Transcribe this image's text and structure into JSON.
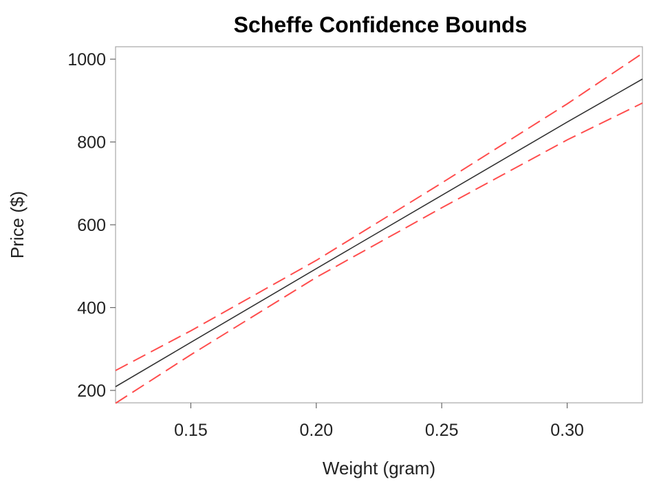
{
  "chart_data": {
    "type": "line",
    "title": "Scheffe Confidence Bounds",
    "xlabel": "Weight (gram)",
    "ylabel": "Price ($)",
    "xlim": [
      0.12,
      0.33
    ],
    "ylim": [
      170,
      1030
    ],
    "x_ticks": [
      0.15,
      0.2,
      0.25,
      0.3
    ],
    "x_tick_labels": [
      "0.15",
      "0.20",
      "0.25",
      "0.30"
    ],
    "y_ticks": [
      200,
      400,
      600,
      800,
      1000
    ],
    "y_tick_labels": [
      "200",
      "400",
      "600",
      "800",
      "1000"
    ],
    "grid": false,
    "legend": "none",
    "series": [
      {
        "role": "fit",
        "color": "#333333",
        "style": "solid",
        "x": [
          0.12,
          0.15,
          0.2,
          0.25,
          0.3,
          0.33
        ],
        "y": [
          209,
          316,
          494,
          671,
          848,
          952
        ]
      },
      {
        "role": "upper-bound",
        "color": "#ff4d4d",
        "style": "dashed",
        "x": [
          0.12,
          0.15,
          0.2,
          0.25,
          0.3,
          0.33
        ],
        "y": [
          248,
          344,
          514,
          701,
          892,
          1014
        ]
      },
      {
        "role": "lower-bound",
        "color": "#ff4d4d",
        "style": "dashed",
        "x": [
          0.12,
          0.15,
          0.2,
          0.25,
          0.3,
          0.33
        ],
        "y": [
          169,
          286,
          473,
          641,
          805,
          894
        ]
      }
    ]
  }
}
